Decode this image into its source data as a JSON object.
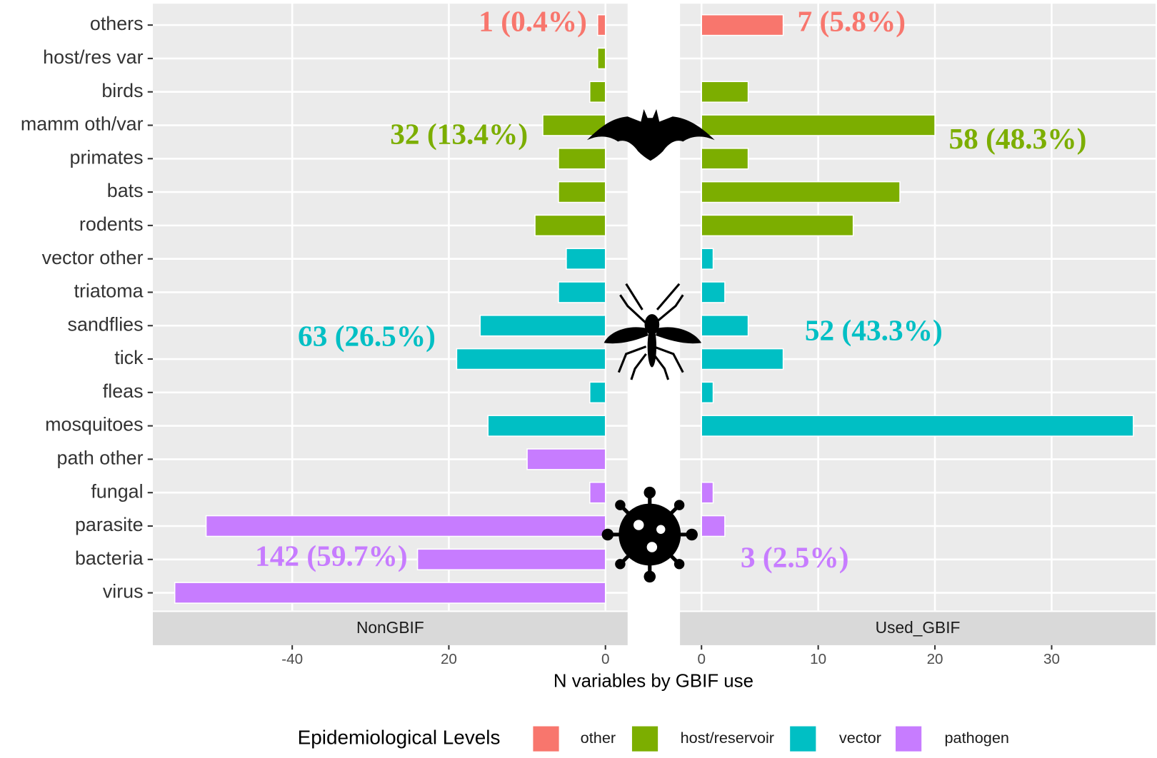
{
  "chart_data": {
    "type": "bar",
    "orientation": "horizontal",
    "xlabel": "N variables by GBIF use",
    "grid": true,
    "categories": [
      "others",
      "host/res var",
      "birds",
      "mamm oth/var",
      "primates",
      "bats",
      "rodents",
      "vector other",
      "triatoma",
      "sandflies",
      "tick",
      "fleas",
      "mosquitoes",
      "path other",
      "fungal",
      "parasite",
      "bacteria",
      "virus"
    ],
    "legend": {
      "title": "Epidemiological Levels",
      "position": "bottom",
      "entries": [
        {
          "name": "other",
          "color": "#F8766D"
        },
        {
          "name": "host/reservoir",
          "color": "#7CAE00"
        },
        {
          "name": "vector",
          "color": "#00BFC4"
        },
        {
          "name": "pathogen",
          "color": "#C77CFF"
        }
      ]
    },
    "panels": [
      {
        "name": "NonGBIF",
        "xlim": [
          -57.8,
          2.83
        ],
        "xticks": [
          -40,
          {
            "value": -20,
            "label": "20"
          },
          0
        ],
        "series": [
          {
            "values": [
              -1,
              null,
              null,
              null,
              null,
              null,
              null,
              null,
              null,
              null,
              null,
              null,
              null,
              null,
              null,
              null,
              null,
              null
            ]
          },
          {
            "values": [
              null,
              -1,
              -2,
              -8,
              -6,
              -6,
              -9,
              null,
              null,
              null,
              null,
              null,
              null,
              null,
              null,
              null,
              null,
              null
            ]
          },
          {
            "values": [
              null,
              null,
              null,
              null,
              null,
              null,
              null,
              -5,
              -6,
              -16,
              -19,
              -2,
              -15,
              null,
              null,
              null,
              null,
              null
            ]
          },
          {
            "values": [
              null,
              null,
              null,
              null,
              null,
              null,
              null,
              null,
              null,
              null,
              null,
              null,
              null,
              -10,
              -2,
              -51,
              -24,
              -55
            ]
          }
        ],
        "annotations": [
          "1 (0.4%)",
          "32 (13.4%)",
          "63 (26.5%)",
          "142 (59.7%)"
        ]
      },
      {
        "name": "Used_GBIF",
        "xlim": [
          -1.84,
          38.9
        ],
        "xticks": [
          0,
          10,
          20,
          30
        ],
        "series": [
          {
            "values": [
              7,
              null,
              null,
              null,
              null,
              null,
              null,
              null,
              null,
              null,
              null,
              null,
              null,
              null,
              null,
              null,
              null,
              null
            ]
          },
          {
            "values": [
              null,
              null,
              4,
              20,
              4,
              17,
              13,
              null,
              null,
              null,
              null,
              null,
              null,
              null,
              null,
              null,
              null,
              null
            ]
          },
          {
            "values": [
              null,
              null,
              null,
              null,
              null,
              null,
              null,
              1,
              2,
              4,
              7,
              1,
              37,
              null,
              null,
              null,
              null,
              null
            ]
          },
          {
            "values": [
              null,
              null,
              null,
              null,
              null,
              null,
              null,
              null,
              null,
              null,
              null,
              null,
              null,
              null,
              1,
              2,
              null,
              null
            ]
          }
        ],
        "annotations": [
          "7 (5.8%)",
          "58 (48.3%)",
          "52 (43.3%)",
          "3 (2.5%)"
        ]
      }
    ]
  }
}
